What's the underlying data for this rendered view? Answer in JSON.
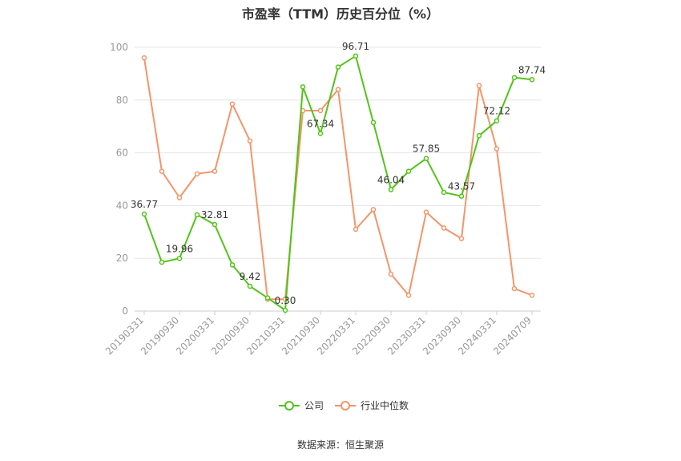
{
  "title": "市盈率（TTM）历史百分位（%）",
  "source": "数据来源：恒生聚源",
  "chart_data": {
    "type": "line",
    "title": "市盈率（TTM）历史百分位（%）",
    "ylim": [
      0,
      100
    ],
    "yticks": [
      0,
      20,
      40,
      60,
      80,
      100
    ],
    "grid": true,
    "legend_position": "bottom",
    "x_tick_labels": [
      "20190331",
      "20190930",
      "20200331",
      "20200930",
      "20210331",
      "20210930",
      "20220331",
      "20220930",
      "20230331",
      "20230930",
      "20240331",
      "20240709"
    ],
    "x": [
      "20190331",
      "20190630",
      "20190930",
      "20191231",
      "20200331",
      "20200630",
      "20200930",
      "20201231",
      "20210331",
      "20210630",
      "20210930",
      "20211231",
      "20220331",
      "20220630",
      "20220930",
      "20221231",
      "20230331",
      "20230630",
      "20230930",
      "20231231",
      "20240331",
      "20240630",
      "20240709"
    ],
    "series": [
      {
        "name": "公司",
        "color": "#52c41a",
        "values": [
          36.77,
          18.5,
          19.96,
          36.5,
          32.81,
          17.5,
          9.42,
          5.0,
          0.3,
          85.0,
          67.34,
          92.5,
          96.71,
          71.5,
          46.04,
          53.0,
          57.85,
          45.0,
          43.57,
          66.5,
          72.12,
          88.5,
          87.74
        ],
        "labels": {
          "0": "36.77",
          "2": "19.96",
          "4": "32.81",
          "6": "9.42",
          "8": "0.30",
          "10": "67.34",
          "12": "96.71",
          "14": "46.04",
          "16": "57.85",
          "18": "43.57",
          "20": "72.12",
          "22": "87.74"
        }
      },
      {
        "name": "行业中位数",
        "color": "#f4956a",
        "values": [
          96.0,
          53.0,
          43.0,
          52.0,
          53.0,
          78.5,
          64.5,
          4.5,
          4.5,
          76.0,
          76.0,
          84.0,
          31.0,
          38.5,
          14.0,
          6.0,
          37.5,
          31.5,
          27.5,
          85.5,
          61.5,
          8.5,
          6.0
        ]
      }
    ]
  }
}
